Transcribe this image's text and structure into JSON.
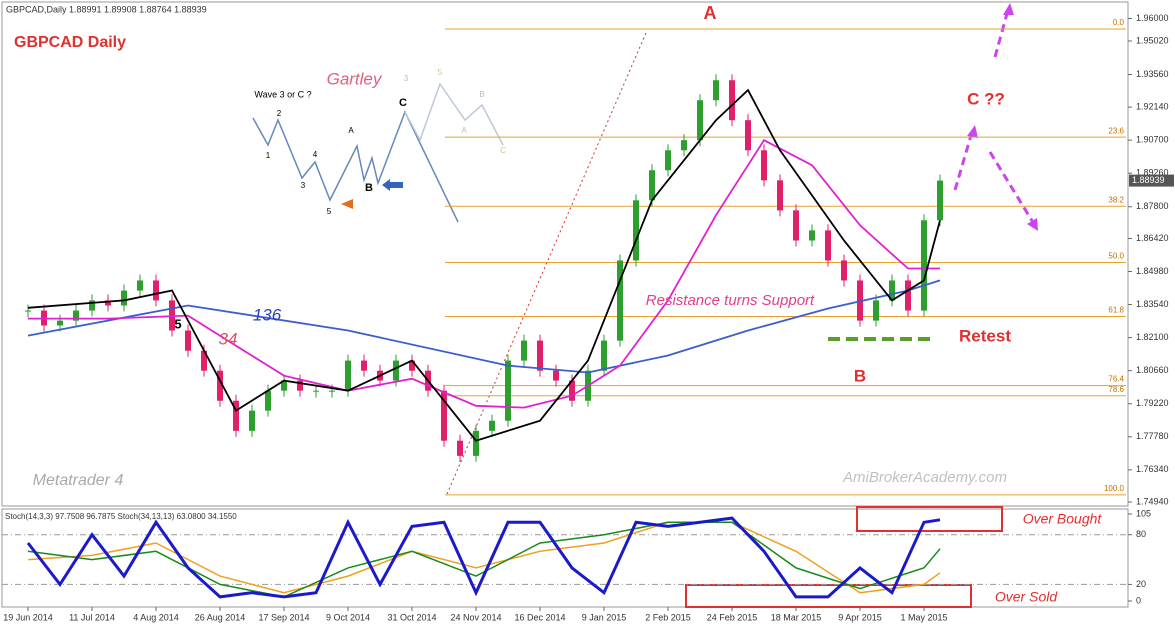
{
  "chart_data": {
    "type": "candlestick",
    "title": "GBPCAD Daily",
    "header": "GBPCAD,Daily  1.88991 1.89908 1.88764 1.88939",
    "up_color": "#2e9e2e",
    "down_color": "#e0206a",
    "x": [
      0,
      4,
      8,
      12,
      16,
      20,
      24,
      28,
      32,
      36,
      40,
      44,
      48,
      52,
      56,
      60,
      64,
      68,
      72,
      76,
      80,
      84,
      88,
      92,
      96,
      100,
      104,
      108,
      112,
      116,
      120,
      124,
      128,
      132,
      136,
      140,
      144,
      148,
      152,
      156,
      160,
      164,
      168,
      172,
      176,
      180,
      184,
      188,
      192,
      196,
      200,
      204,
      208,
      212,
      216,
      220,
      224,
      228
    ],
    "values": [
      1.8328,
      1.8263,
      1.8284,
      1.8328,
      1.8372,
      1.835,
      1.8415,
      1.8459,
      1.8372,
      1.8241,
      1.8153,
      1.8066,
      1.7935,
      1.7804,
      1.7892,
      1.7979,
      1.8023,
      1.7979,
      1.7979,
      1.7979,
      1.811,
      1.8066,
      1.8023,
      1.811,
      1.8066,
      1.7979,
      1.7761,
      1.7695,
      1.7804,
      1.7848,
      1.811,
      1.8197,
      1.8066,
      1.8023,
      1.7935,
      1.8066,
      1.8197,
      1.8546,
      1.8808,
      1.8939,
      1.9026,
      1.907,
      1.9244,
      1.9331,
      1.9157,
      1.9026,
      1.8895,
      1.8764,
      1.8633,
      1.8677,
      1.8546,
      1.8459,
      1.8284,
      1.8372,
      1.8459,
      1.8328,
      1.8721,
      1.8894
    ],
    "last_price": 1.88939,
    "xlim": [
      -6.5,
      275
    ],
    "xticks": [
      {
        "value": 0,
        "label": "19 Jun 2014"
      },
      {
        "value": 16,
        "label": "11 Jul 2014"
      },
      {
        "value": 32,
        "label": "4 Aug 2014"
      },
      {
        "value": 48,
        "label": "26 Aug 2014"
      },
      {
        "value": 64,
        "label": "17 Sep 2014"
      },
      {
        "value": 80,
        "label": "9 Oct 2014"
      },
      {
        "value": 96,
        "label": "31 Oct 2014"
      },
      {
        "value": 112,
        "label": "24 Nov 2014"
      },
      {
        "value": 128,
        "label": "16 Dec 2014"
      },
      {
        "value": 144,
        "label": "9 Jan 2015"
      },
      {
        "value": 160,
        "label": "2 Feb 2015"
      },
      {
        "value": 176,
        "label": "24 Feb 2015"
      },
      {
        "value": 192,
        "label": "18 Mar 2015"
      },
      {
        "value": 208,
        "label": "9 Apr 2015"
      },
      {
        "value": 224,
        "label": "1 May 2015"
      }
    ],
    "ylim": [
      1.7481,
      1.9663
    ],
    "yticks": [
      {
        "value": 1.96,
        "label": "1.96000"
      },
      {
        "value": 1.9502,
        "label": "1.95020"
      },
      {
        "value": 1.9356,
        "label": "1.93560"
      },
      {
        "value": 1.9214,
        "label": "1.92140"
      },
      {
        "value": 1.907,
        "label": "1.90700"
      },
      {
        "value": 1.8926,
        "label": "1.89260"
      },
      {
        "value": 1.878,
        "label": "1.87800"
      },
      {
        "value": 1.8642,
        "label": "1.86420"
      },
      {
        "value": 1.8498,
        "label": "1.84980"
      },
      {
        "value": 1.8354,
        "label": "1.83540"
      },
      {
        "value": 1.821,
        "label": "1.82100"
      },
      {
        "value": 1.8066,
        "label": "1.80660"
      },
      {
        "value": 1.7922,
        "label": "1.79220"
      },
      {
        "value": 1.7778,
        "label": "1.77780"
      },
      {
        "value": 1.7634,
        "label": "1.76340"
      },
      {
        "value": 1.7494,
        "label": "1.74940"
      }
    ],
    "moving_averages": [
      {
        "name": "136",
        "color": "#3a5fcd",
        "x": [
          0,
          40,
          80,
          120,
          140,
          160,
          180,
          200,
          220,
          228
        ],
        "values": [
          1.8219,
          1.835,
          1.8241,
          1.8088,
          1.8058,
          1.8132,
          1.8241,
          1.8337,
          1.8415,
          1.8459
        ]
      },
      {
        "name": "34",
        "color": "#e020d0",
        "x": [
          0,
          20,
          40,
          52,
          64,
          80,
          96,
          112,
          124,
          136,
          148,
          160,
          172,
          184,
          196,
          208,
          220,
          228
        ],
        "values": [
          1.8293,
          1.8293,
          1.8306,
          1.8175,
          1.8044,
          1.7979,
          1.8031,
          1.7913,
          1.7905,
          1.7957,
          1.8088,
          1.8372,
          1.8743,
          1.907,
          1.8961,
          1.8699,
          1.8511,
          1.8511
        ]
      },
      {
        "color": "#000000",
        "x": [
          0,
          24,
          36,
          52,
          64,
          80,
          96,
          112,
          128,
          140,
          156,
          172,
          180,
          188,
          204,
          216,
          224,
          228
        ],
        "values": [
          1.834,
          1.8372,
          1.8415,
          1.7892,
          1.8023,
          1.7979,
          1.811,
          1.7761,
          1.7848,
          1.811,
          1.8808,
          1.9157,
          1.9288,
          1.9026,
          1.8633,
          1.8372,
          1.8459,
          1.8721
        ]
      }
    ],
    "fibonacci": {
      "color": "#e8a030",
      "levels": [
        {
          "label": "0.0",
          "price": 1.9554
        },
        {
          "label": "23.6",
          "price": 1.9083
        },
        {
          "label": "38.2",
          "price": 1.8782
        },
        {
          "label": "50.0",
          "price": 1.8537
        },
        {
          "label": "61.8",
          "price": 1.8302
        },
        {
          "label": "76.4",
          "price": 1.8001
        },
        {
          "label": "78.6",
          "price": 1.7957
        },
        {
          "label": "100.0",
          "price": 1.7525
        }
      ]
    },
    "annotations": [
      "A",
      "B",
      "C ??",
      "Retest",
      "Resistance turns Support",
      "AmiBrokerAcademy.com",
      "Metatrader 4",
      "136",
      "34",
      "5"
    ],
    "gartley": {
      "title": "Gartley",
      "subtitle": "Wave 3 or C ?",
      "labels": [
        "1",
        "2",
        "3",
        "4",
        "5",
        "A",
        "B",
        "C",
        "3",
        "5",
        "A",
        "B",
        "C"
      ]
    },
    "stochastic": {
      "header": "Stoch(14,3,3) 97.7508 96.7875  Stoch(34,13,13) 63.0800 34.1550",
      "ylim": [
        0,
        105
      ],
      "yticks": [
        105,
        80,
        20,
        0
      ],
      "levels": [
        80,
        20
      ],
      "boxes": [
        "Over Bought",
        "Over Sold"
      ],
      "series": [
        {
          "color": "#f0a020",
          "x": [
            0,
            16,
            32,
            48,
            64,
            80,
            96,
            112,
            128,
            144,
            160,
            176,
            192,
            208,
            224,
            228
          ],
          "values": [
            50,
            55,
            70,
            30,
            10,
            30,
            60,
            40,
            60,
            70,
            95,
            95,
            60,
            10,
            20,
            34
          ]
        },
        {
          "color": "#1a8a1a",
          "x": [
            0,
            16,
            32,
            48,
            64,
            80,
            96,
            112,
            128,
            144,
            160,
            176,
            192,
            208,
            224,
            228
          ],
          "values": [
            60,
            50,
            60,
            20,
            5,
            40,
            60,
            30,
            70,
            80,
            95,
            95,
            40,
            15,
            40,
            63
          ]
        },
        {
          "color": "#1a1acc",
          "x": [
            0,
            8,
            16,
            24,
            32,
            40,
            48,
            56,
            64,
            72,
            80,
            88,
            96,
            104,
            112,
            120,
            128,
            136,
            144,
            152,
            160,
            168,
            176,
            184,
            192,
            200,
            208,
            216,
            224,
            228
          ],
          "values": [
            70,
            20,
            80,
            30,
            95,
            40,
            5,
            10,
            5,
            10,
            95,
            20,
            90,
            95,
            10,
            95,
            95,
            40,
            10,
            95,
            90,
            95,
            100,
            60,
            5,
            5,
            40,
            10,
            95,
            98
          ]
        }
      ]
    }
  }
}
